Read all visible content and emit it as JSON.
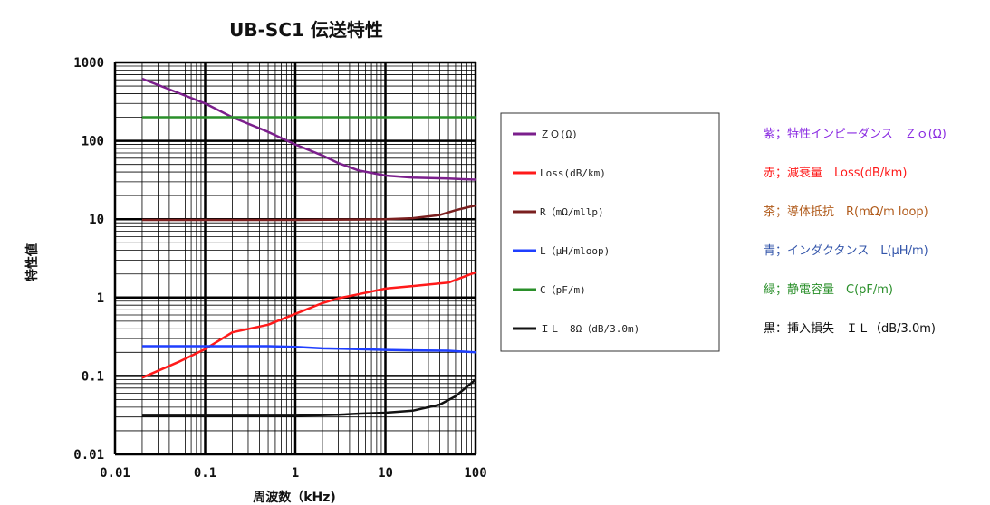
{
  "chart_data": {
    "type": "line",
    "title": "UB-SC1 伝送特性",
    "xlabel": "周波数（kHz)",
    "ylabel": "特性値",
    "xscale": "log",
    "yscale": "log",
    "xlim": [
      0.01,
      100
    ],
    "ylim": [
      0.01,
      1000
    ],
    "grid": true,
    "legend_position": "right",
    "x_ticks": [
      "0.01",
      "0.1",
      "1",
      "10",
      "100"
    ],
    "y_ticks": [
      "0.01",
      "0.1",
      "1",
      "10",
      "100",
      "1000"
    ],
    "series": [
      {
        "name": "ＺＯ(Ω)",
        "color": "#7b1f8c",
        "x": [
          0.02,
          0.05,
          0.1,
          0.2,
          0.5,
          1,
          2,
          3,
          5,
          10,
          20,
          50,
          100
        ],
        "y": [
          620,
          410,
          300,
          200,
          130,
          90,
          65,
          52,
          42,
          36,
          34,
          33,
          32
        ]
      },
      {
        "name": "Loss(dB/km)",
        "color": "#ff1a1a",
        "x": [
          0.02,
          0.05,
          0.1,
          0.2,
          0.5,
          1,
          2,
          3,
          5,
          10,
          20,
          50,
          100
        ],
        "y": [
          0.095,
          0.15,
          0.22,
          0.36,
          0.45,
          0.62,
          0.85,
          0.98,
          1.1,
          1.3,
          1.4,
          1.55,
          2.1
        ]
      },
      {
        "name": "R（mΩ/mllp)",
        "color": "#7a1f1f",
        "x": [
          0.02,
          0.1,
          1,
          5,
          10,
          20,
          40,
          60,
          100
        ],
        "y": [
          9.8,
          9.8,
          9.8,
          9.9,
          10,
          10.3,
          11.3,
          13,
          15
        ]
      },
      {
        "name": "L（μH/mloop)",
        "color": "#1f3fff",
        "x": [
          0.02,
          0.1,
          0.5,
          1,
          2,
          5,
          10,
          20,
          50,
          100
        ],
        "y": [
          0.24,
          0.24,
          0.24,
          0.235,
          0.225,
          0.22,
          0.215,
          0.212,
          0.21,
          0.2
        ]
      },
      {
        "name": "C（pF/m)",
        "color": "#2a8f2a",
        "x": [
          0.02,
          0.1,
          1,
          10,
          100
        ],
        "y": [
          200,
          200,
          200,
          200,
          200
        ]
      },
      {
        "name": "ＩＬ　8Ω（dB/3.0m)",
        "color": "#111111",
        "x": [
          0.02,
          0.1,
          1,
          3,
          5,
          10,
          20,
          40,
          60,
          100
        ],
        "y": [
          0.031,
          0.031,
          0.031,
          0.032,
          0.033,
          0.034,
          0.036,
          0.043,
          0.055,
          0.09
        ]
      }
    ]
  },
  "notes": [
    {
      "text": "紫；特性インピーダンス　Ｚｏ(Ω)",
      "color": "#8a2be2"
    },
    {
      "text": "赤；減衰量　Loss(dB/km)",
      "color": "#ff1a1a"
    },
    {
      "text": "茶；導体抵抗　R(mΩ/m loop)",
      "color": "#b05a1a"
    },
    {
      "text": "青；インダクタンス　L(μH/m)",
      "color": "#3355aa"
    },
    {
      "text": "緑；静電容量　C(pF/m)",
      "color": "#2a8f2a"
    },
    {
      "text": "黒：挿入損失　ＩＬ（dB/3.0m)",
      "color": "#111111"
    }
  ]
}
